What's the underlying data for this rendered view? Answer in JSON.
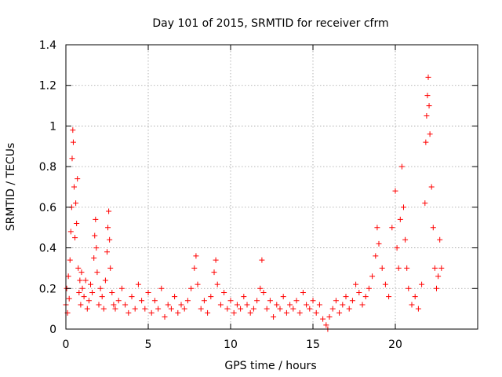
{
  "chart_data": {
    "type": "scatter",
    "title": "Day 101 of 2015, SRMTID for receiver cfrm",
    "xlabel": "GPS time / hours",
    "ylabel": "SRMTID / TECUs",
    "xlim": [
      0,
      25
    ],
    "ylim": [
      0,
      1.4
    ],
    "xticks": [
      0,
      5,
      10,
      15,
      20
    ],
    "xtick_labels": [
      "0",
      "5",
      "10",
      "15",
      "20"
    ],
    "yticks": [
      0,
      0.2,
      0.4,
      0.6,
      0.8,
      1,
      1.2,
      1.4
    ],
    "ytick_labels": [
      "0",
      "0.2",
      "0.4",
      "0.6",
      "0.8",
      "1",
      "1.2",
      "1.4"
    ],
    "grid": true,
    "marker": "+",
    "series": [
      {
        "name": "SRMTID",
        "color": "#ff0000",
        "x": [
          0.0,
          0.05,
          0.1,
          0.15,
          0.2,
          0.25,
          0.3,
          0.35,
          0.38,
          0.42,
          0.45,
          0.5,
          0.55,
          0.6,
          0.65,
          0.7,
          0.75,
          0.8,
          0.85,
          0.9,
          0.95,
          1.0,
          1.1,
          1.2,
          1.3,
          1.4,
          1.5,
          1.6,
          1.7,
          1.75,
          1.8,
          1.85,
          1.9,
          2.0,
          2.1,
          2.2,
          2.3,
          2.4,
          2.5,
          2.55,
          2.6,
          2.65,
          2.7,
          2.8,
          2.9,
          3.0,
          3.2,
          3.4,
          3.6,
          3.8,
          4.0,
          4.2,
          4.4,
          4.6,
          4.8,
          5.0,
          5.2,
          5.4,
          5.6,
          5.8,
          6.0,
          6.2,
          6.4,
          6.6,
          6.8,
          7.0,
          7.2,
          7.4,
          7.6,
          7.8,
          7.9,
          8.0,
          8.2,
          8.4,
          8.6,
          8.8,
          9.0,
          9.1,
          9.2,
          9.4,
          9.6,
          9.8,
          10.0,
          10.2,
          10.4,
          10.6,
          10.8,
          11.0,
          11.2,
          11.4,
          11.6,
          11.8,
          11.9,
          12.0,
          12.2,
          12.4,
          12.6,
          12.8,
          13.0,
          13.2,
          13.4,
          13.6,
          13.8,
          14.0,
          14.2,
          14.4,
          14.6,
          14.8,
          15.0,
          15.2,
          15.4,
          15.6,
          15.8,
          15.9,
          16.0,
          16.2,
          16.4,
          16.6,
          16.8,
          17.0,
          17.2,
          17.4,
          17.6,
          17.8,
          18.0,
          18.2,
          18.4,
          18.6,
          18.8,
          18.9,
          19.0,
          19.2,
          19.4,
          19.6,
          19.8,
          20.0,
          20.1,
          20.2,
          20.3,
          20.4,
          20.5,
          20.6,
          20.7,
          20.8,
          21.0,
          21.2,
          21.4,
          21.6,
          21.8,
          21.85,
          21.9,
          21.95,
          22.0,
          22.05,
          22.1,
          22.2,
          22.3,
          22.4,
          22.5,
          22.6,
          22.7,
          22.8
        ],
        "y": [
          0.12,
          0.2,
          0.08,
          0.26,
          0.15,
          0.34,
          0.48,
          0.6,
          0.84,
          0.98,
          0.92,
          0.7,
          0.45,
          0.62,
          0.52,
          0.74,
          0.3,
          0.18,
          0.24,
          0.12,
          0.28,
          0.2,
          0.16,
          0.24,
          0.1,
          0.14,
          0.22,
          0.18,
          0.35,
          0.46,
          0.54,
          0.4,
          0.28,
          0.12,
          0.2,
          0.16,
          0.1,
          0.24,
          0.38,
          0.5,
          0.58,
          0.44,
          0.3,
          0.18,
          0.12,
          0.1,
          0.14,
          0.2,
          0.12,
          0.08,
          0.16,
          0.1,
          0.22,
          0.14,
          0.1,
          0.18,
          0.08,
          0.14,
          0.1,
          0.2,
          0.06,
          0.12,
          0.1,
          0.16,
          0.08,
          0.12,
          0.1,
          0.14,
          0.2,
          0.3,
          0.36,
          0.22,
          0.1,
          0.14,
          0.08,
          0.16,
          0.28,
          0.34,
          0.22,
          0.12,
          0.18,
          0.1,
          0.14,
          0.08,
          0.12,
          0.1,
          0.16,
          0.12,
          0.08,
          0.1,
          0.14,
          0.2,
          0.34,
          0.18,
          0.1,
          0.14,
          0.06,
          0.12,
          0.1,
          0.16,
          0.08,
          0.12,
          0.1,
          0.14,
          0.08,
          0.18,
          0.12,
          0.1,
          0.14,
          0.08,
          0.12,
          0.05,
          0.02,
          0.0,
          0.06,
          0.1,
          0.14,
          0.08,
          0.12,
          0.16,
          0.1,
          0.14,
          0.22,
          0.18,
          0.12,
          0.16,
          0.2,
          0.26,
          0.36,
          0.5,
          0.42,
          0.3,
          0.22,
          0.16,
          0.5,
          0.68,
          0.4,
          0.3,
          0.54,
          0.8,
          0.6,
          0.44,
          0.3,
          0.2,
          0.12,
          0.16,
          0.1,
          0.22,
          0.62,
          0.92,
          1.05,
          1.15,
          1.24,
          1.1,
          0.96,
          0.7,
          0.5,
          0.3,
          0.2,
          0.26,
          0.44,
          0.3
        ]
      }
    ]
  }
}
